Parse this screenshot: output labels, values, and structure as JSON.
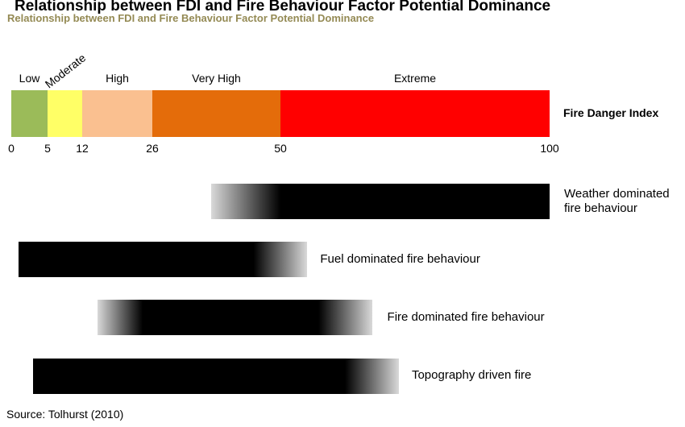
{
  "title": "Relationship between FDI and Fire Behaviour Factor Potential Dominance",
  "subtitle": "Relationship between FDI and Fire Behaviour Factor Potential Dominance",
  "source": "Source: Tolhurst (2010)",
  "chart_data": {
    "type": "bar",
    "title": "Relationship between FDI and Fire Behaviour Factor Potential Dominance",
    "fdi_label": "Fire Danger Index",
    "x_range": [
      0,
      100
    ],
    "ticks": [
      "0",
      "5",
      "12",
      "26",
      "50",
      "100"
    ],
    "bands": [
      {
        "label": "Low",
        "from": 0,
        "to": 5,
        "color": "#9bbb59"
      },
      {
        "label": "Moderate",
        "from": 5,
        "to": 12,
        "color": "#ffff66"
      },
      {
        "label": "High",
        "from": 12,
        "to": 26,
        "color": "#fac090"
      },
      {
        "label": "Very High",
        "from": 26,
        "to": 50,
        "color": "#e46c0a"
      },
      {
        "label": "Extreme",
        "from": 50,
        "to": 100,
        "color": "#ff0000"
      }
    ],
    "factors": [
      {
        "name": "Weather dominated fire behaviour",
        "from": 37,
        "to": 100,
        "fade_in_end": 50,
        "fade_out_start": 100
      },
      {
        "name": "Fuel dominated fire behaviour",
        "from": 1,
        "to": 55,
        "fade_in_end": 1,
        "fade_out_start": 45
      },
      {
        "name": "Fire dominated fire behaviour",
        "from": 15,
        "to": 67,
        "fade_in_end": 24,
        "fade_out_start": 57
      },
      {
        "name": "Topography driven fire",
        "from": 3,
        "to": 72,
        "fade_in_end": 3,
        "fade_out_start": 62
      }
    ]
  }
}
